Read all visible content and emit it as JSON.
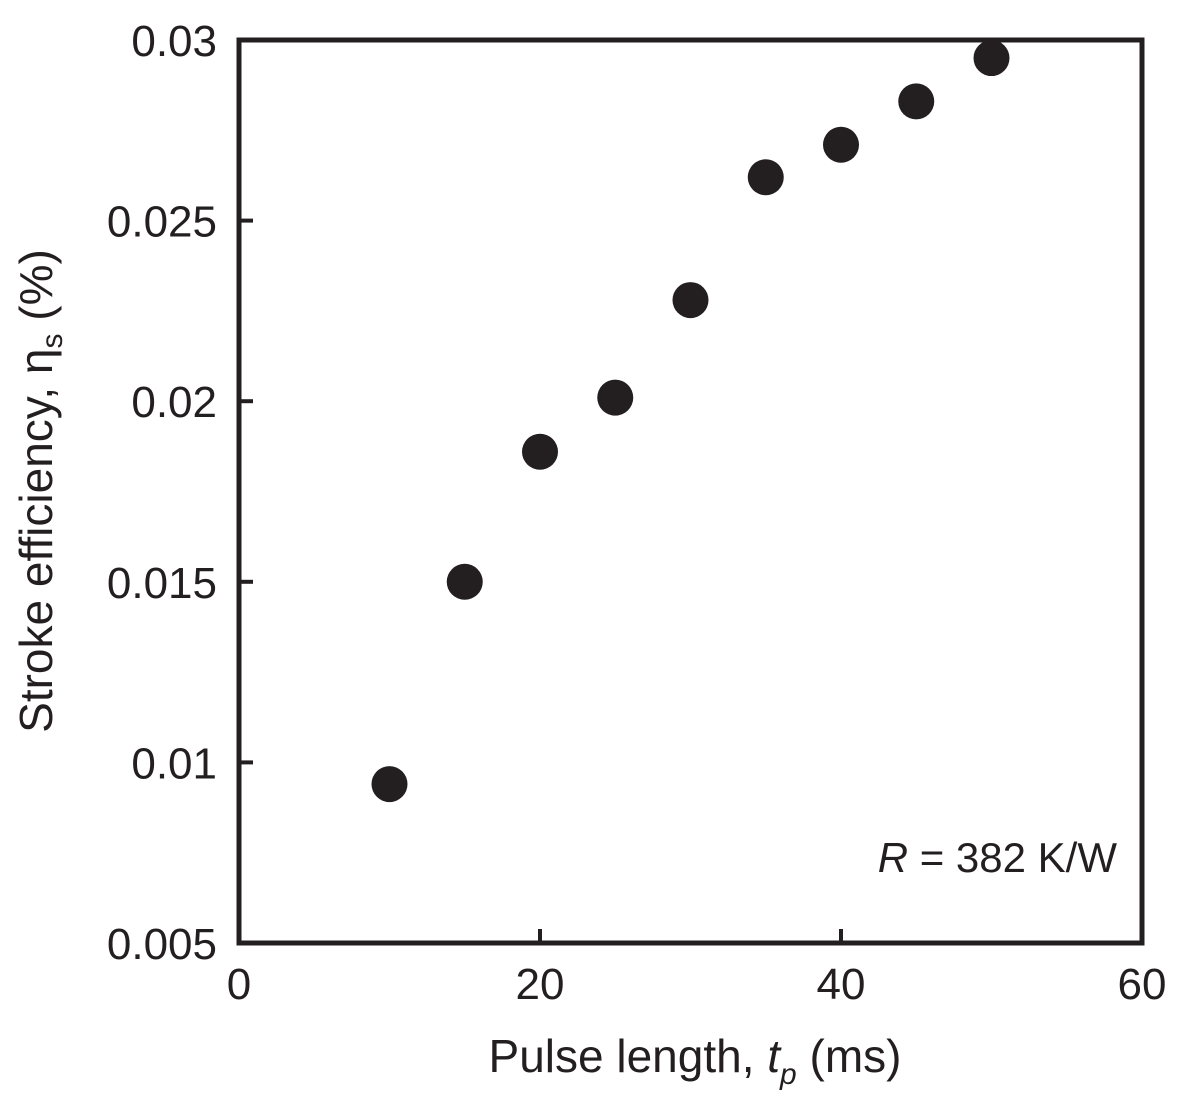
{
  "chart_data": {
    "type": "scatter",
    "xlabel": {
      "main": "Pulse length, ",
      "var": "t",
      "sub": "p",
      "unit": " (ms)"
    },
    "ylabel": {
      "main": "Stroke efficiency, ",
      "var": "η",
      "sub": "s",
      "unit": " (%)"
    },
    "xlim": [
      0,
      60
    ],
    "ylim": [
      0.005,
      0.03
    ],
    "xticks": [
      0,
      20,
      40,
      60
    ],
    "xtick_labels": [
      "0",
      "20",
      "40",
      "60"
    ],
    "yticks": [
      0.005,
      0.01,
      0.015,
      0.02,
      0.025,
      0.03
    ],
    "ytick_labels": [
      "0.005",
      "0.01",
      "0.015",
      "0.02",
      "0.025",
      "0.03"
    ],
    "grid": false,
    "series": [
      {
        "color": "#231f20",
        "points": [
          {
            "x": 10,
            "y": 0.0094
          },
          {
            "x": 15,
            "y": 0.015
          },
          {
            "x": 20,
            "y": 0.0186
          },
          {
            "x": 25,
            "y": 0.0201
          },
          {
            "x": 30,
            "y": 0.0228
          },
          {
            "x": 35,
            "y": 0.0262
          },
          {
            "x": 40,
            "y": 0.0271
          },
          {
            "x": 45,
            "y": 0.0283
          },
          {
            "x": 50,
            "y": 0.0295
          }
        ]
      }
    ],
    "annotation": {
      "var": "R",
      "text": " = 382 K/W"
    }
  }
}
